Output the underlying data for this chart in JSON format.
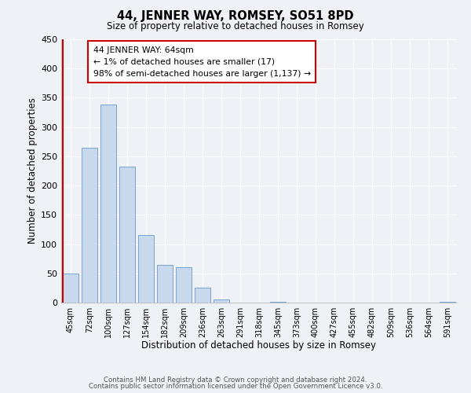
{
  "title": "44, JENNER WAY, ROMSEY, SO51 8PD",
  "subtitle": "Size of property relative to detached houses in Romsey",
  "xlabel": "Distribution of detached houses by size in Romsey",
  "ylabel": "Number of detached properties",
  "footer_line1": "Contains HM Land Registry data © Crown copyright and database right 2024.",
  "footer_line2": "Contains public sector information licensed under the Open Government Licence v3.0.",
  "bar_labels": [
    "45sqm",
    "72sqm",
    "100sqm",
    "127sqm",
    "154sqm",
    "182sqm",
    "209sqm",
    "236sqm",
    "263sqm",
    "291sqm",
    "318sqm",
    "345sqm",
    "373sqm",
    "400sqm",
    "427sqm",
    "455sqm",
    "482sqm",
    "509sqm",
    "536sqm",
    "564sqm",
    "591sqm"
  ],
  "bar_values": [
    50,
    265,
    338,
    232,
    115,
    65,
    61,
    25,
    6,
    0,
    0,
    2,
    0,
    0,
    0,
    0,
    0,
    0,
    0,
    0,
    2
  ],
  "bar_color": "#c8d9ee",
  "bar_edge_color": "#6699cc",
  "background_color": "#eef2f7",
  "grid_color": "#ffffff",
  "marker_line_color": "#cc0000",
  "annotation_line1": "44 JENNER WAY: 64sqm",
  "annotation_line2": "← 1% of detached houses are smaller (17)",
  "annotation_line3": "98% of semi-detached houses are larger (1,137) →",
  "annotation_box_edge_color": "#cc0000",
  "ylim": [
    0,
    450
  ],
  "yticks": [
    0,
    50,
    100,
    150,
    200,
    250,
    300,
    350,
    400,
    450
  ]
}
